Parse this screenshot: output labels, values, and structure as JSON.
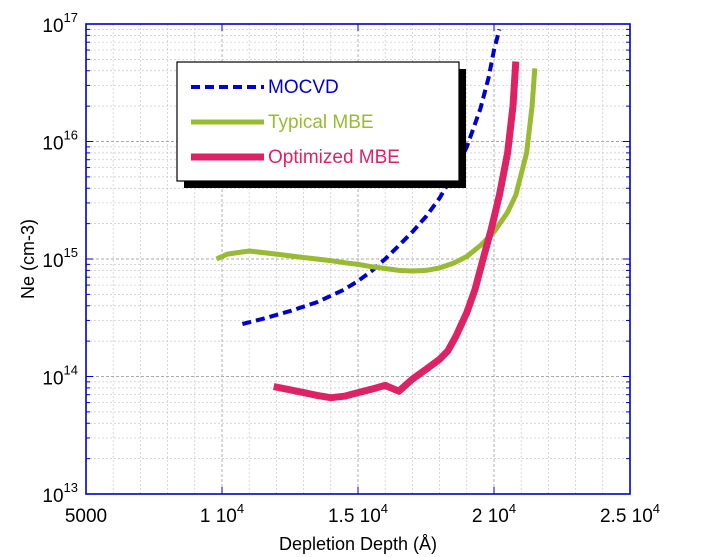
{
  "chart_data": {
    "type": "line",
    "title": "",
    "xlabel": "Depletion Depth (Å)",
    "ylabel": "Ne (cm-3)",
    "xlim": [
      5000,
      25000
    ],
    "ylim": [
      10000000000000.0,
      1e+17
    ],
    "yscale": "log",
    "grid": true,
    "legend_position": "upper-left",
    "x_ticks": [
      {
        "value": 5000,
        "label": "5000"
      },
      {
        "value": 10000,
        "base": "1 10",
        "exp": "4"
      },
      {
        "value": 15000,
        "base": "1.5 10",
        "exp": "4"
      },
      {
        "value": 20000,
        "base": "2 10",
        "exp": "4"
      },
      {
        "value": 25000,
        "base": "2.5 10",
        "exp": "4"
      }
    ],
    "y_ticks": [
      {
        "value": 10000000000000.0,
        "base": "10",
        "exp": "13"
      },
      {
        "value": 100000000000000.0,
        "base": "10",
        "exp": "14"
      },
      {
        "value": 1000000000000000.0,
        "base": "10",
        "exp": "15"
      },
      {
        "value": 1e+16,
        "base": "10",
        "exp": "16"
      },
      {
        "value": 1e+17,
        "base": "10",
        "exp": "17"
      }
    ],
    "series": [
      {
        "name": "MOCVD",
        "color": "#0000cc",
        "dash": "dashed",
        "points": [
          [
            10750,
            280000000000000.0
          ],
          [
            11500,
            310000000000000.0
          ],
          [
            12500,
            360000000000000.0
          ],
          [
            13500,
            430000000000000.0
          ],
          [
            14500,
            550000000000000.0
          ],
          [
            15000,
            650000000000000.0
          ],
          [
            15500,
            790000000000000.0
          ],
          [
            16000,
            1000000000000000.0
          ],
          [
            16500,
            1300000000000000.0
          ],
          [
            17000,
            1700000000000000.0
          ],
          [
            17500,
            2300000000000000.0
          ],
          [
            18000,
            3300000000000000.0
          ],
          [
            18500,
            5200000000000000.0
          ],
          [
            19000,
            9000000000000000.0
          ],
          [
            19500,
            1.9e+16
          ],
          [
            19800,
            3.5e+16
          ],
          [
            20000,
            6e+16
          ],
          [
            20200,
            9e+16
          ]
        ]
      },
      {
        "name": "Typical MBE",
        "color": "#99bb33",
        "dash": "solid",
        "points": [
          [
            9800,
            1000000000000000.0
          ],
          [
            10200,
            1100000000000000.0
          ],
          [
            11000,
            1170000000000000.0
          ],
          [
            12000,
            1100000000000000.0
          ],
          [
            13000,
            1030000000000000.0
          ],
          [
            14000,
            970000000000000.0
          ],
          [
            14500,
            930000000000000.0
          ],
          [
            15000,
            900000000000000.0
          ],
          [
            15500,
            860000000000000.0
          ],
          [
            16000,
            830000000000000.0
          ],
          [
            16500,
            800000000000000.0
          ],
          [
            17000,
            790000000000000.0
          ],
          [
            17500,
            800000000000000.0
          ],
          [
            18000,
            840000000000000.0
          ],
          [
            18500,
            920000000000000.0
          ],
          [
            19000,
            1050000000000000.0
          ],
          [
            19500,
            1300000000000000.0
          ],
          [
            20000,
            1700000000000000.0
          ],
          [
            20500,
            2500000000000000.0
          ],
          [
            20800,
            3500000000000000.0
          ],
          [
            21200,
            8000000000000000.0
          ],
          [
            21400,
            2e+16
          ],
          [
            21500,
            4.2e+16
          ]
        ]
      },
      {
        "name": "Optimized MBE",
        "color": "#dd2266",
        "dash": "solid",
        "points": [
          [
            11900,
            82000000000000.0
          ],
          [
            12500,
            77000000000000.0
          ],
          [
            13000,
            73000000000000.0
          ],
          [
            13500,
            69000000000000.0
          ],
          [
            14000,
            66000000000000.0
          ],
          [
            14500,
            68000000000000.0
          ],
          [
            15000,
            73000000000000.0
          ],
          [
            15500,
            78000000000000.0
          ],
          [
            16000,
            84000000000000.0
          ],
          [
            16500,
            75000000000000.0
          ],
          [
            17000,
            95000000000000.0
          ],
          [
            17500,
            115000000000000.0
          ],
          [
            18000,
            140000000000000.0
          ],
          [
            18300,
            165000000000000.0
          ],
          [
            18600,
            220000000000000.0
          ],
          [
            19000,
            350000000000000.0
          ],
          [
            19300,
            550000000000000.0
          ],
          [
            19600,
            1000000000000000.0
          ],
          [
            19900,
            1800000000000000.0
          ],
          [
            20200,
            3500000000000000.0
          ],
          [
            20500,
            8000000000000000.0
          ],
          [
            20700,
            2e+16
          ],
          [
            20800,
            4.8e+16
          ]
        ]
      }
    ]
  }
}
